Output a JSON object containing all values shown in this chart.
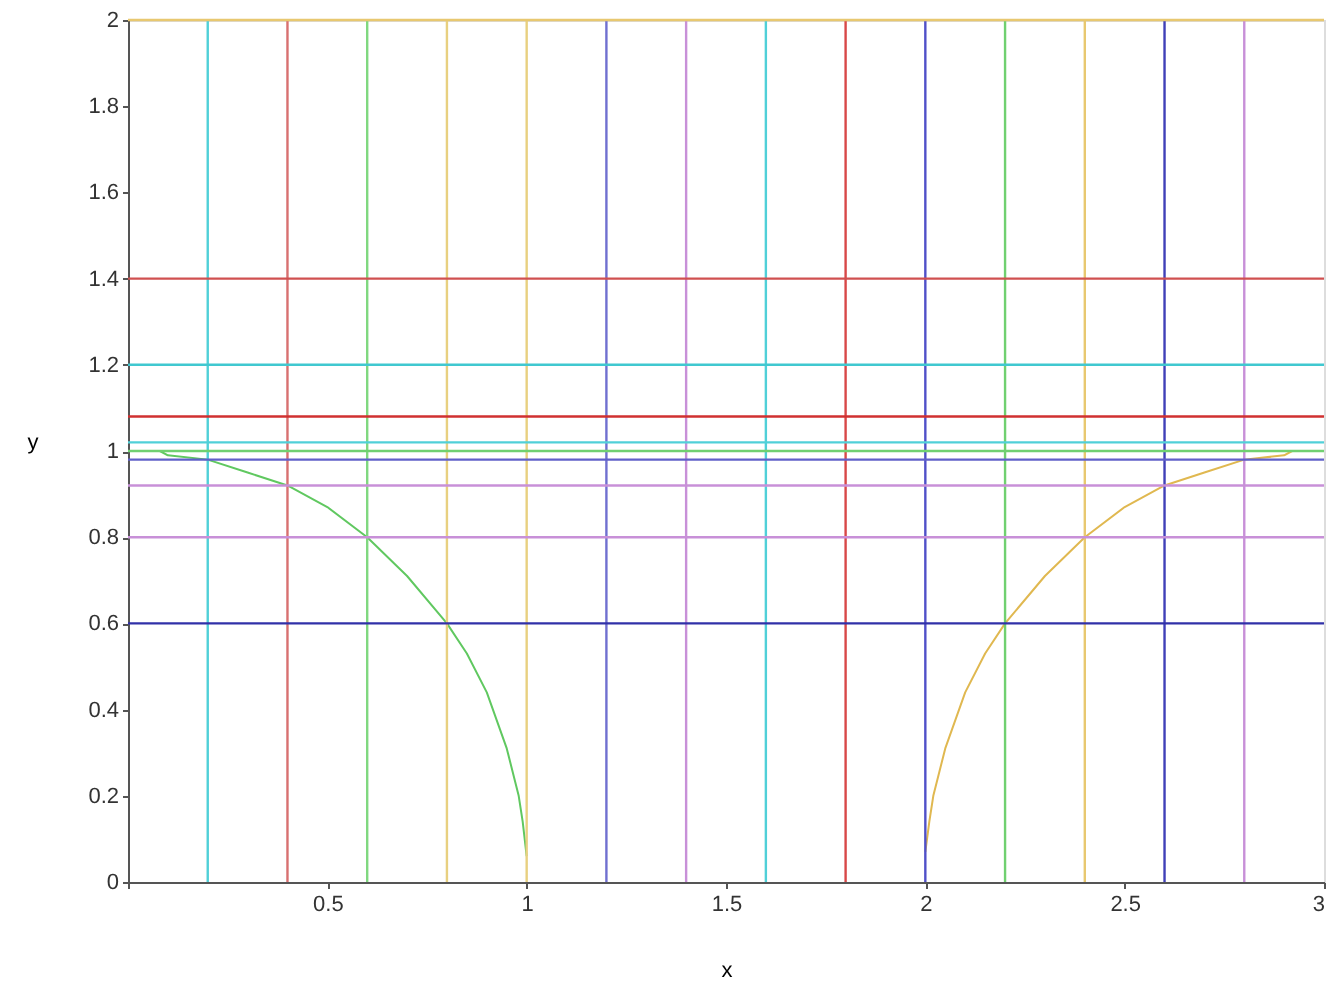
{
  "chart_data": {
    "type": "line",
    "xlabel": "x",
    "ylabel": "y",
    "xlim": [
      0,
      3
    ],
    "ylim": [
      0,
      2
    ],
    "grid": false,
    "xticks": [
      {
        "value": 0,
        "label": null
      },
      0.5,
      1,
      1.5,
      2,
      2.5,
      3
    ],
    "yticks": [
      0,
      0.2,
      0.4,
      0.6,
      0.8,
      1,
      1.2,
      1.4,
      1.6,
      1.8,
      2
    ],
    "series": [
      {
        "color": "#60c860",
        "x": [
          0.08,
          0.1,
          0.2,
          0.3,
          0.4,
          0.5,
          0.6,
          0.7,
          0.8,
          0.85,
          0.9,
          0.95,
          0.98,
          0.99,
          1.0
        ],
        "values": [
          1.0,
          0.99,
          0.98,
          0.95,
          0.92,
          0.87,
          0.8,
          0.71,
          0.6,
          0.53,
          0.44,
          0.31,
          0.2,
          0.14,
          0.06
        ]
      },
      {
        "color": "#e0b850",
        "x": [
          2.0,
          2.01,
          2.02,
          2.05,
          2.1,
          2.15,
          2.2,
          2.3,
          2.4,
          2.5,
          2.6,
          2.7,
          2.8,
          2.9,
          2.92
        ],
        "values": [
          0.07,
          0.14,
          0.2,
          0.31,
          0.44,
          0.53,
          0.6,
          0.71,
          0.8,
          0.87,
          0.92,
          0.95,
          0.98,
          0.99,
          1.0
        ]
      }
    ],
    "ref_lines": [
      {
        "axis": "x",
        "value": 0.2,
        "color": "#50d0d8"
      },
      {
        "axis": "x",
        "value": 0.4,
        "color": "#d87070"
      },
      {
        "axis": "x",
        "value": 0.6,
        "color": "#80d880"
      },
      {
        "axis": "x",
        "value": 0.8,
        "color": "#e8d080"
      },
      {
        "axis": "x",
        "value": 1.0,
        "color": "#e8d080"
      },
      {
        "axis": "x",
        "value": 1.2,
        "color": "#7070d0"
      },
      {
        "axis": "x",
        "value": 1.4,
        "color": "#c890d8"
      },
      {
        "axis": "x",
        "value": 1.6,
        "color": "#50d0d8"
      },
      {
        "axis": "x",
        "value": 1.8,
        "color": "#d84848"
      },
      {
        "axis": "x",
        "value": 2.0,
        "color": "#5050c8"
      },
      {
        "axis": "x",
        "value": 2.2,
        "color": "#70d070"
      },
      {
        "axis": "x",
        "value": 2.4,
        "color": "#e8c870"
      },
      {
        "axis": "x",
        "value": 2.6,
        "color": "#4040b8"
      },
      {
        "axis": "x",
        "value": 2.8,
        "color": "#c890d8"
      },
      {
        "axis": "y",
        "value": 2.0,
        "color": "#e8c870"
      },
      {
        "axis": "y",
        "value": 1.4,
        "color": "#d05050"
      },
      {
        "axis": "y",
        "value": 1.2,
        "color": "#40c8d0"
      },
      {
        "axis": "y",
        "value": 1.08,
        "color": "#d03030"
      },
      {
        "axis": "y",
        "value": 1.02,
        "color": "#50d0d8"
      },
      {
        "axis": "y",
        "value": 1.0,
        "color": "#70d070"
      },
      {
        "axis": "y",
        "value": 0.98,
        "color": "#6060c8"
      },
      {
        "axis": "y",
        "value": 0.92,
        "color": "#c890d8"
      },
      {
        "axis": "y",
        "value": 0.8,
        "color": "#c890d8"
      },
      {
        "axis": "y",
        "value": 0.6,
        "color": "#3030a8"
      }
    ]
  }
}
